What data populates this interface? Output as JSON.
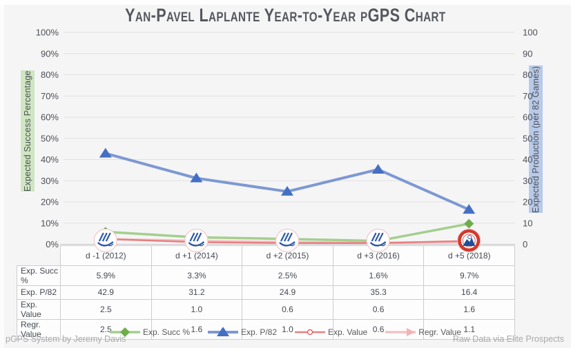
{
  "title": "Yan-Pavel Laplante Year-to-Year pGPS Chart",
  "axes": {
    "left": {
      "label": "Expected Success Percentage",
      "highlight_color": "#cfe6c2",
      "ticks": [
        "100%",
        "90%",
        "80%",
        "70%",
        "60%",
        "50%",
        "40%",
        "30%",
        "20%",
        "10%",
        "0%"
      ]
    },
    "right": {
      "label": "Expected Production (per 82 Games)",
      "highlight_color": "#b8cae8",
      "ticks": [
        "100",
        "90",
        "80",
        "70",
        "60",
        "50",
        "40",
        "30",
        "20",
        "10",
        "0"
      ]
    }
  },
  "chart_data": {
    "type": "line",
    "title": "Yan-Pavel Laplante Year-to-Year pGPS Chart",
    "categories": [
      "d -1 (2012)",
      "d +1 (2014)",
      "d +2 (2015)",
      "d +3 (2016)",
      "d +5 (2018)"
    ],
    "series": [
      {
        "name": "Exp. Succ %",
        "axis": "left",
        "unit": "%",
        "values": [
          5.9,
          3.3,
          2.5,
          1.6,
          9.7
        ],
        "line_color": "#a3cf8c",
        "marker": "diamond",
        "marker_color": "#6fad4c",
        "line_width": 3.5
      },
      {
        "name": "Exp. P/82",
        "axis": "right",
        "unit": "",
        "values": [
          42.9,
          31.2,
          24.9,
          35.3,
          16.4
        ],
        "line_color": "#7d98d2",
        "marker": "triangle",
        "marker_color": "#4470c4",
        "line_width": 4
      },
      {
        "name": "Exp. Value",
        "axis": "right",
        "unit": "",
        "values": [
          2.5,
          1.0,
          0.6,
          0.6,
          1.6
        ],
        "line_color": "#e87f7f",
        "marker": "circle",
        "marker_color": "#e06666",
        "line_width": 2.5
      },
      {
        "name": "Regr. Value",
        "axis": "right",
        "unit": "",
        "values": [
          2.5,
          1.6,
          1.0,
          0.6,
          1.1
        ],
        "line_color": "#f5c2c6",
        "marker": "arrow",
        "marker_color": "#f3b3b8",
        "line_width": 3.5
      }
    ],
    "ylim_left": [
      0,
      100
    ],
    "ylim_right": [
      0,
      100
    ],
    "grid": true,
    "legend_position": "bottom",
    "point_logos": [
      "qmjhl",
      "qmjhl",
      "qmjhl",
      "qmjhl",
      "aihl"
    ]
  },
  "table": {
    "rows": [
      {
        "label": "Exp. Succ %",
        "values": [
          "5.9%",
          "3.3%",
          "2.5%",
          "1.6%",
          "9.7%"
        ]
      },
      {
        "label": "Exp. P/82",
        "values": [
          "42.9",
          "31.2",
          "24.9",
          "35.3",
          "16.4"
        ]
      },
      {
        "label": "Exp. Value",
        "values": [
          "2.5",
          "1.0",
          "0.6",
          "0.6",
          "1.6"
        ]
      },
      {
        "label": "Regr. Value",
        "values": [
          "2.5",
          "1.6",
          "1.0",
          "0.6",
          "1.1"
        ]
      }
    ]
  },
  "footer": {
    "left": "pGPS System by Jeremy Davis",
    "right": "Raw Data via Elite Prospects"
  },
  "colors": {
    "background": "#f5f5f6",
    "gridline": "#e1e1e3",
    "axis_line": "#c6c6c8",
    "tick_text": "#4b4f55",
    "title_text": "#54575d",
    "table_border": "#cdcdcf",
    "table_text": "#45494f",
    "footer_text": "#a9a9ab"
  }
}
